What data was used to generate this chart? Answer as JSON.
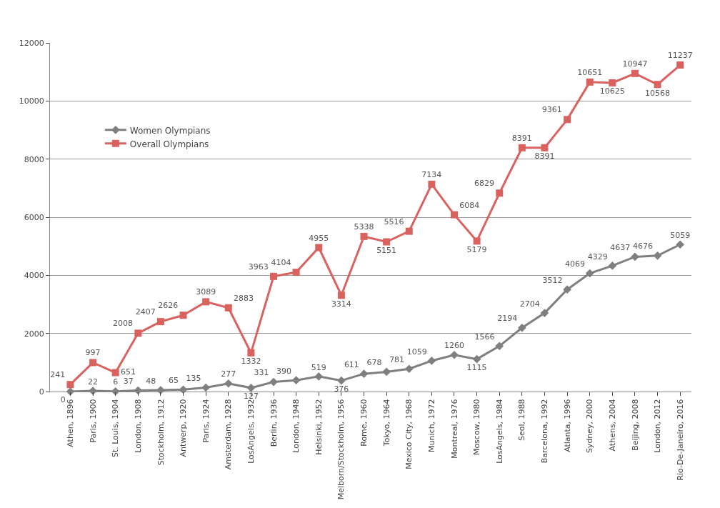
{
  "chart_data": {
    "type": "line",
    "categories": [
      "Athen, 1896",
      "Paris, 1900",
      "St. Louis, 1904",
      "London, 1908",
      "Stockholm, 1912",
      "Antwerp, 1920",
      "Paris, 1924",
      "Amsterdam, 1928",
      "LosAngels, 1932",
      "Berlin, 1936",
      "London, 1948",
      "Helsinki, 1952",
      "Melborn/Stockholm, 1956",
      "Rome, 1960",
      "Tokyo, 1964",
      "Mexico City, 1968",
      "Munich, 1972",
      "Montreal, 1976",
      "Moscow, 1980",
      "LosAngels, 1984",
      "Seol, 1988",
      "Barcelona, 1992",
      "Atlanta, 1996",
      "Sydney, 2000",
      "Athens, 2004",
      "Beijing, 2008",
      "London, 2012",
      "Rio-De-Janeiro, 2016"
    ],
    "series": [
      {
        "name": "Women Olympians",
        "color": "#7f7f7f",
        "marker": "diamond",
        "values": [
          0,
          22,
          6,
          37,
          48,
          65,
          135,
          277,
          127,
          331,
          390,
          519,
          376,
          611,
          678,
          781,
          1059,
          1260,
          1115,
          1566,
          2194,
          2704,
          3512,
          4069,
          4329,
          4637,
          4676,
          5059
        ]
      },
      {
        "name": "Overall Olympians",
        "color": "#d9625f",
        "marker": "square",
        "values": [
          241,
          997,
          651,
          2008,
          2407,
          2626,
          3089,
          2883,
          1332,
          3963,
          4104,
          4955,
          3314,
          5338,
          5151,
          5516,
          7134,
          6084,
          5179,
          6829,
          8391,
          8391,
          9361,
          10651,
          10625,
          10947,
          10568,
          11237
        ]
      }
    ],
    "ylim": [
      0,
      12000
    ],
    "yticks": [
      0,
      2000,
      4000,
      6000,
      8000,
      10000,
      12000
    ],
    "grid": "y",
    "legend": "top left",
    "data_labels": true,
    "line_style": "solid"
  }
}
